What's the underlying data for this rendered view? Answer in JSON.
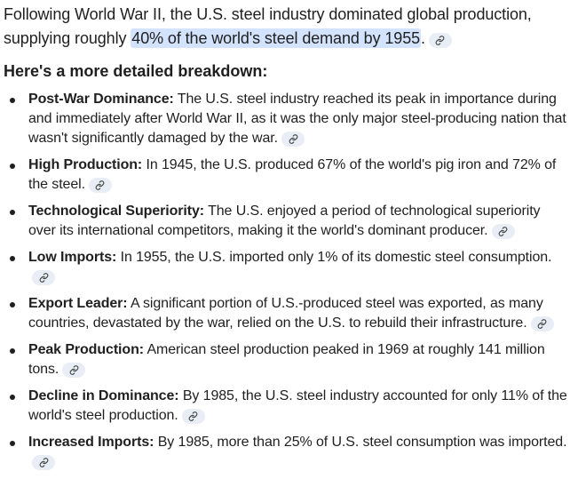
{
  "intro": {
    "before": "Following World War II, the U.S. steel industry dominated global production, supplying roughly ",
    "highlight": "40% of the world's steel demand by 1955",
    "after": "."
  },
  "heading": "Here's a more detailed breakdown:",
  "items": [
    {
      "term": "Post-War Dominance:",
      "text": " The U.S. steel industry reached its peak in importance during and immediately after World War II, as it was the only major steel-producing nation that wasn't significantly damaged by the war."
    },
    {
      "term": "High Production:",
      "text": " In 1945, the U.S. produced 67% of the world's pig iron and 72% of the steel."
    },
    {
      "term": "Technological Superiority:",
      "text": " The U.S. enjoyed a period of technological superiority over its international competitors, making it the world's dominant producer."
    },
    {
      "term": "Low Imports:",
      "text": " In 1955, the U.S. imported only 1% of its domestic steel consumption."
    },
    {
      "term": "Export Leader:",
      "text": " A significant portion of U.S.-produced steel was exported, as many countries, devastated by the war, relied on the U.S. to rebuild their infrastructure."
    },
    {
      "term": "Peak Production:",
      "text": " American steel production peaked in 1969 at roughly 141 million tons."
    },
    {
      "term": "Decline in Dominance:",
      "text": " By 1985, the U.S. steel industry accounted for only 11% of the world's steel production."
    },
    {
      "term": "Increased Imports:",
      "text": " By 1985, more than 25% of U.S. steel consumption was imported."
    }
  ],
  "icons": {
    "link": "link-icon"
  },
  "colors": {
    "highlight": "#d3e3fd",
    "chip": "#e9eef6",
    "text": "#1f1f1f",
    "icon": "#444746"
  }
}
